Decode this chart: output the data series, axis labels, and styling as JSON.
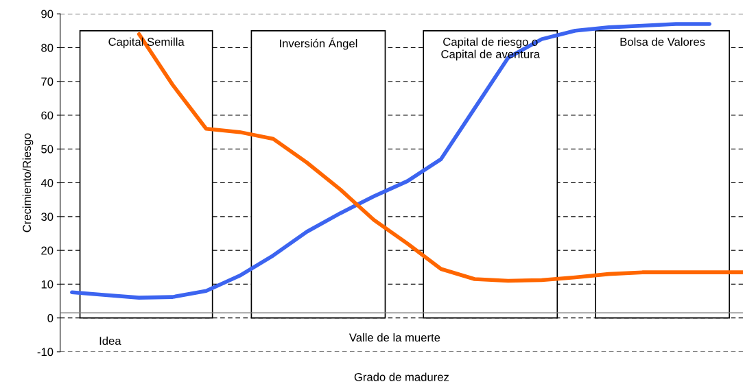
{
  "chart_data": {
    "type": "line",
    "xlabel": "Grado de madurez",
    "ylabel": "Crecimiento/Riesgo",
    "categories": [
      null,
      null,
      null,
      null,
      null,
      null,
      null,
      null,
      null,
      null,
      null,
      null,
      null,
      null,
      null,
      null,
      null,
      null,
      null,
      null,
      null
    ],
    "ylim": [
      -10,
      90
    ],
    "yticks": [
      -10,
      0,
      10,
      20,
      30,
      40,
      50,
      60,
      70,
      80,
      90
    ],
    "tick_labels": "y",
    "grid": "y",
    "legend": false,
    "marker": "none",
    "line_style": "solid",
    "series": [
      {
        "color": "#3c64f0",
        "values": [
          7.6,
          6.8,
          6.0,
          6.2,
          8.0,
          12.5,
          18.5,
          25.5,
          31,
          36,
          40.5,
          47,
          62,
          77,
          82.5,
          85,
          86,
          86.5,
          87,
          87,
          null
        ]
      },
      {
        "color": "#ff6600",
        "values": [
          null,
          null,
          84,
          69,
          56,
          55,
          53,
          46,
          38,
          29,
          22,
          14.5,
          11.5,
          11,
          11.2,
          12,
          13,
          13.5,
          13.5,
          13.5,
          13.5
        ]
      }
    ],
    "ref_lines": [
      {
        "axis": "y",
        "value": 1.5,
        "color": "#808080",
        "line_style": "solid"
      }
    ],
    "annotations": [
      "Capital Semilla",
      "Inversión Ángel",
      "Capital de riesgo o\nCapital de aventura",
      "Bolsa de Valores",
      "Idea",
      "Valle de la muerte"
    ]
  }
}
